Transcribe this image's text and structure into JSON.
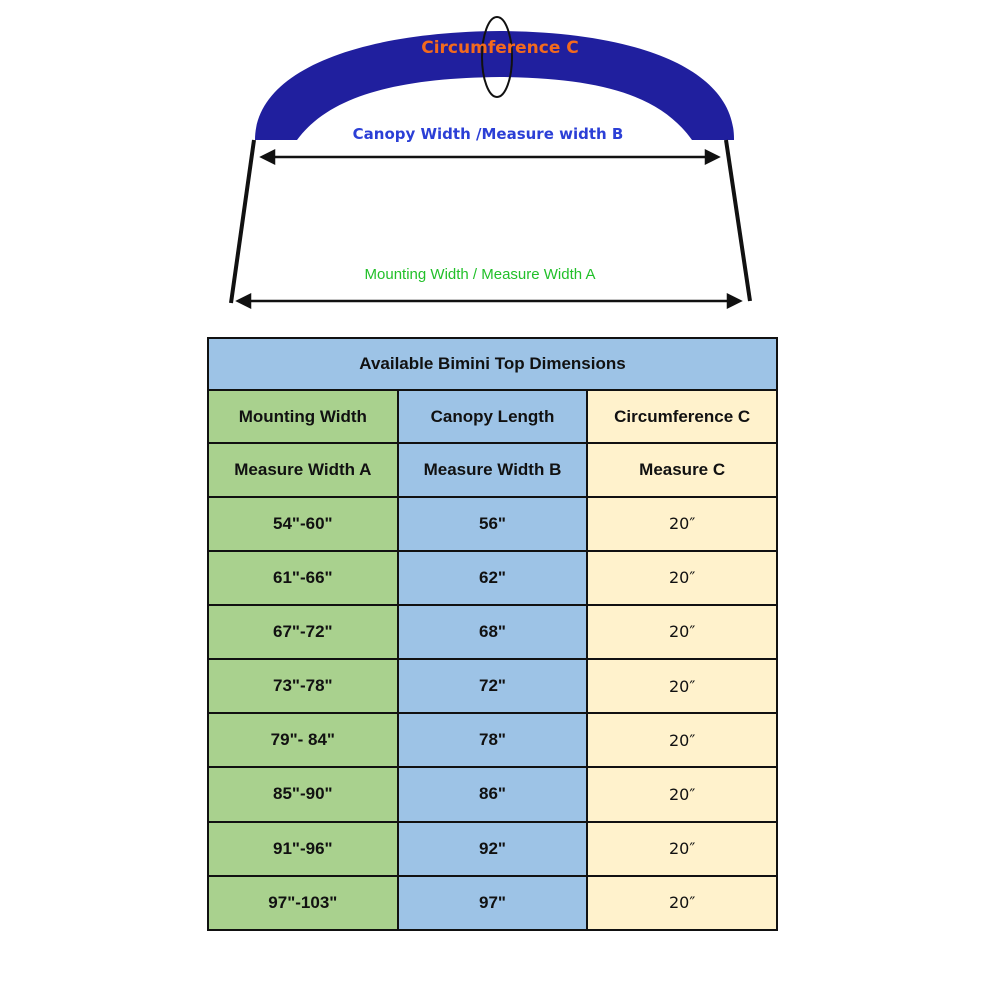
{
  "diagram": {
    "circumference_label": "Circumference  C",
    "canopy_label": "Canopy Width /Measure width B",
    "mounting_label": "Mounting Width / Measure Width A",
    "colors": {
      "canopy": "#201f9e",
      "circumference_text": "#f36a1d",
      "canopy_text": "#2b3fd6",
      "mounting_text": "#22c02a"
    }
  },
  "table": {
    "title": "Available Bimini Top Dimensions",
    "headers": [
      [
        "Mounting Width",
        "Canopy Length",
        "Circumference  C"
      ],
      [
        "Measure Width A",
        "Measure Width B",
        "Measure C"
      ]
    ],
    "rows": [
      [
        "54\"-60\"",
        "56\"",
        "20″"
      ],
      [
        "61\"-66\"",
        "62\"",
        "20″"
      ],
      [
        "67\"-72\"",
        "68\"",
        "20″"
      ],
      [
        "73\"-78\"",
        "72\"",
        "20″"
      ],
      [
        "79\"- 84\"",
        "78\"",
        "20″"
      ],
      [
        "85\"-90\"",
        "86\"",
        "20″"
      ],
      [
        "91\"-96\"",
        "92\"",
        "20″"
      ],
      [
        "97\"-103\"",
        "97\"",
        "20″"
      ]
    ],
    "colors": {
      "col_a": "#a9d18e",
      "col_b": "#9dc3e6",
      "col_c": "#fff2cc"
    }
  }
}
